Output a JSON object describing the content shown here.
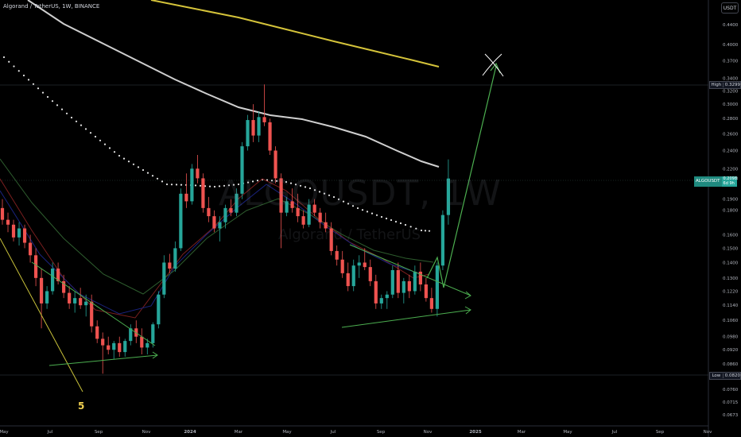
{
  "header": {
    "title": "Algorand / TetherUS, 1W, BINANCE"
  },
  "currency_button": "USDT",
  "watermark": {
    "symbol": "ALGOUSDT, 1W",
    "name": "Algorand / TetherUS"
  },
  "wave_label": "5",
  "price_tags": {
    "high": {
      "label": "High",
      "value": "0.3299"
    },
    "low": {
      "label": "Low",
      "value": "0.0820"
    },
    "current": {
      "label": "ALGOUSDT",
      "value": "0.2098",
      "countdown": "6d 9h"
    }
  },
  "colors": {
    "up": "#26a69a",
    "down": "#ef5350",
    "ma_white": "#cfcfcf",
    "ma_yellow": "#d4c33a",
    "drawing_green": "#4caf50",
    "drawing_yellow": "#c9c23a"
  },
  "chart_data": {
    "type": "candlestick",
    "title": "Algorand / TetherUS, 1W, BINANCE",
    "symbol": "ALGOUSDT",
    "interval": "1W",
    "y_scale": "log",
    "ylim": [
      0.063,
      0.47
    ],
    "y_ticks": [
      "0.4400",
      "0.4000",
      "0.3700",
      "0.3400",
      "0.3200",
      "0.3000",
      "0.2800",
      "0.2600",
      "0.2400",
      "0.2200",
      "0.2098",
      "0.1900",
      "0.1800",
      "0.1600",
      "0.1500",
      "0.1400",
      "0.1300",
      "0.1220",
      "0.1140",
      "0.1060",
      "0.0980",
      "0.0920",
      "0.0860",
      "0.0820",
      "0.0760",
      "0.0715",
      "0.0673"
    ],
    "x_ticks": [
      "May",
      "Jul",
      "Sep",
      "Nov",
      "2024",
      "Mar",
      "May",
      "Jul",
      "Sep",
      "Nov",
      "2025",
      "Mar",
      "May",
      "Jul",
      "Sep",
      "Nov"
    ],
    "high": 0.3299,
    "low": 0.082,
    "last": 0.2098,
    "candles": [
      [
        0.182,
        0.19,
        0.168,
        0.172
      ],
      [
        0.172,
        0.178,
        0.162,
        0.168
      ],
      [
        0.168,
        0.172,
        0.155,
        0.158
      ],
      [
        0.158,
        0.17,
        0.152,
        0.165
      ],
      [
        0.165,
        0.168,
        0.15,
        0.154
      ],
      [
        0.154,
        0.16,
        0.14,
        0.145
      ],
      [
        0.145,
        0.15,
        0.125,
        0.13
      ],
      [
        0.13,
        0.136,
        0.102,
        0.115
      ],
      [
        0.115,
        0.125,
        0.112,
        0.122
      ],
      [
        0.122,
        0.14,
        0.12,
        0.136
      ],
      [
        0.136,
        0.14,
        0.126,
        0.128
      ],
      [
        0.128,
        0.132,
        0.118,
        0.121
      ],
      [
        0.121,
        0.125,
        0.112,
        0.115
      ],
      [
        0.115,
        0.122,
        0.11,
        0.118
      ],
      [
        0.118,
        0.124,
        0.112,
        0.114
      ],
      [
        0.114,
        0.12,
        0.108,
        0.116
      ],
      [
        0.116,
        0.12,
        0.1,
        0.103
      ],
      [
        0.103,
        0.106,
        0.095,
        0.097
      ],
      [
        0.097,
        0.1,
        0.082,
        0.094
      ],
      [
        0.094,
        0.098,
        0.09,
        0.092
      ],
      [
        0.092,
        0.096,
        0.088,
        0.095
      ],
      [
        0.095,
        0.098,
        0.089,
        0.091
      ],
      [
        0.091,
        0.097,
        0.089,
        0.096
      ],
      [
        0.096,
        0.104,
        0.094,
        0.102
      ],
      [
        0.102,
        0.106,
        0.095,
        0.098
      ],
      [
        0.098,
        0.102,
        0.09,
        0.093
      ],
      [
        0.093,
        0.097,
        0.09,
        0.095
      ],
      [
        0.095,
        0.105,
        0.093,
        0.104
      ],
      [
        0.104,
        0.122,
        0.102,
        0.12
      ],
      [
        0.12,
        0.145,
        0.118,
        0.14
      ],
      [
        0.14,
        0.146,
        0.133,
        0.136
      ],
      [
        0.136,
        0.155,
        0.134,
        0.15
      ],
      [
        0.15,
        0.2,
        0.148,
        0.195
      ],
      [
        0.195,
        0.215,
        0.182,
        0.188
      ],
      [
        0.188,
        0.225,
        0.185,
        0.22
      ],
      [
        0.22,
        0.235,
        0.205,
        0.21
      ],
      [
        0.21,
        0.215,
        0.178,
        0.182
      ],
      [
        0.182,
        0.192,
        0.17,
        0.175
      ],
      [
        0.175,
        0.18,
        0.162,
        0.165
      ],
      [
        0.165,
        0.175,
        0.155,
        0.17
      ],
      [
        0.17,
        0.185,
        0.165,
        0.182
      ],
      [
        0.182,
        0.19,
        0.175,
        0.178
      ],
      [
        0.178,
        0.2,
        0.175,
        0.195
      ],
      [
        0.195,
        0.25,
        0.19,
        0.245
      ],
      [
        0.245,
        0.285,
        0.24,
        0.278
      ],
      [
        0.278,
        0.3,
        0.25,
        0.258
      ],
      [
        0.258,
        0.29,
        0.25,
        0.282
      ],
      [
        0.282,
        0.33,
        0.27,
        0.275
      ],
      [
        0.275,
        0.28,
        0.235,
        0.24
      ],
      [
        0.24,
        0.245,
        0.205,
        0.21
      ],
      [
        0.21,
        0.215,
        0.15,
        0.178
      ],
      [
        0.178,
        0.192,
        0.175,
        0.188
      ],
      [
        0.188,
        0.2,
        0.178,
        0.182
      ],
      [
        0.182,
        0.195,
        0.17,
        0.175
      ],
      [
        0.175,
        0.18,
        0.165,
        0.168
      ],
      [
        0.168,
        0.19,
        0.166,
        0.185
      ],
      [
        0.185,
        0.19,
        0.175,
        0.178
      ],
      [
        0.178,
        0.182,
        0.165,
        0.17
      ],
      [
        0.17,
        0.178,
        0.162,
        0.165
      ],
      [
        0.165,
        0.17,
        0.145,
        0.148
      ],
      [
        0.148,
        0.152,
        0.138,
        0.142
      ],
      [
        0.142,
        0.148,
        0.13,
        0.133
      ],
      [
        0.133,
        0.14,
        0.122,
        0.125
      ],
      [
        0.125,
        0.142,
        0.122,
        0.138
      ],
      [
        0.138,
        0.145,
        0.13,
        0.14
      ],
      [
        0.14,
        0.15,
        0.135,
        0.137
      ],
      [
        0.137,
        0.142,
        0.125,
        0.128
      ],
      [
        0.128,
        0.132,
        0.112,
        0.115
      ],
      [
        0.115,
        0.12,
        0.112,
        0.118
      ],
      [
        0.118,
        0.122,
        0.112,
        0.12
      ],
      [
        0.12,
        0.138,
        0.118,
        0.135
      ],
      [
        0.135,
        0.14,
        0.118,
        0.121
      ],
      [
        0.121,
        0.13,
        0.115,
        0.128
      ],
      [
        0.128,
        0.132,
        0.118,
        0.122
      ],
      [
        0.122,
        0.138,
        0.12,
        0.134
      ],
      [
        0.134,
        0.14,
        0.122,
        0.126
      ],
      [
        0.126,
        0.13,
        0.116,
        0.118
      ],
      [
        0.118,
        0.124,
        0.11,
        0.112
      ],
      [
        0.112,
        0.14,
        0.108,
        0.138
      ],
      [
        0.138,
        0.18,
        0.135,
        0.176
      ],
      [
        0.176,
        0.23,
        0.168,
        0.2098
      ]
    ],
    "moving_averages": [
      {
        "name": "long-ma-yellow",
        "color": "#d4c33a"
      },
      {
        "name": "ma-white",
        "color": "#cfcfcf"
      },
      {
        "name": "ma-dotted",
        "color": "#e0e0e0"
      },
      {
        "name": "ema-red",
        "color": "#b71c1c"
      },
      {
        "name": "ema-blue",
        "color": "#1a237e"
      },
      {
        "name": "ema-green",
        "color": "#2e7d32"
      }
    ]
  }
}
